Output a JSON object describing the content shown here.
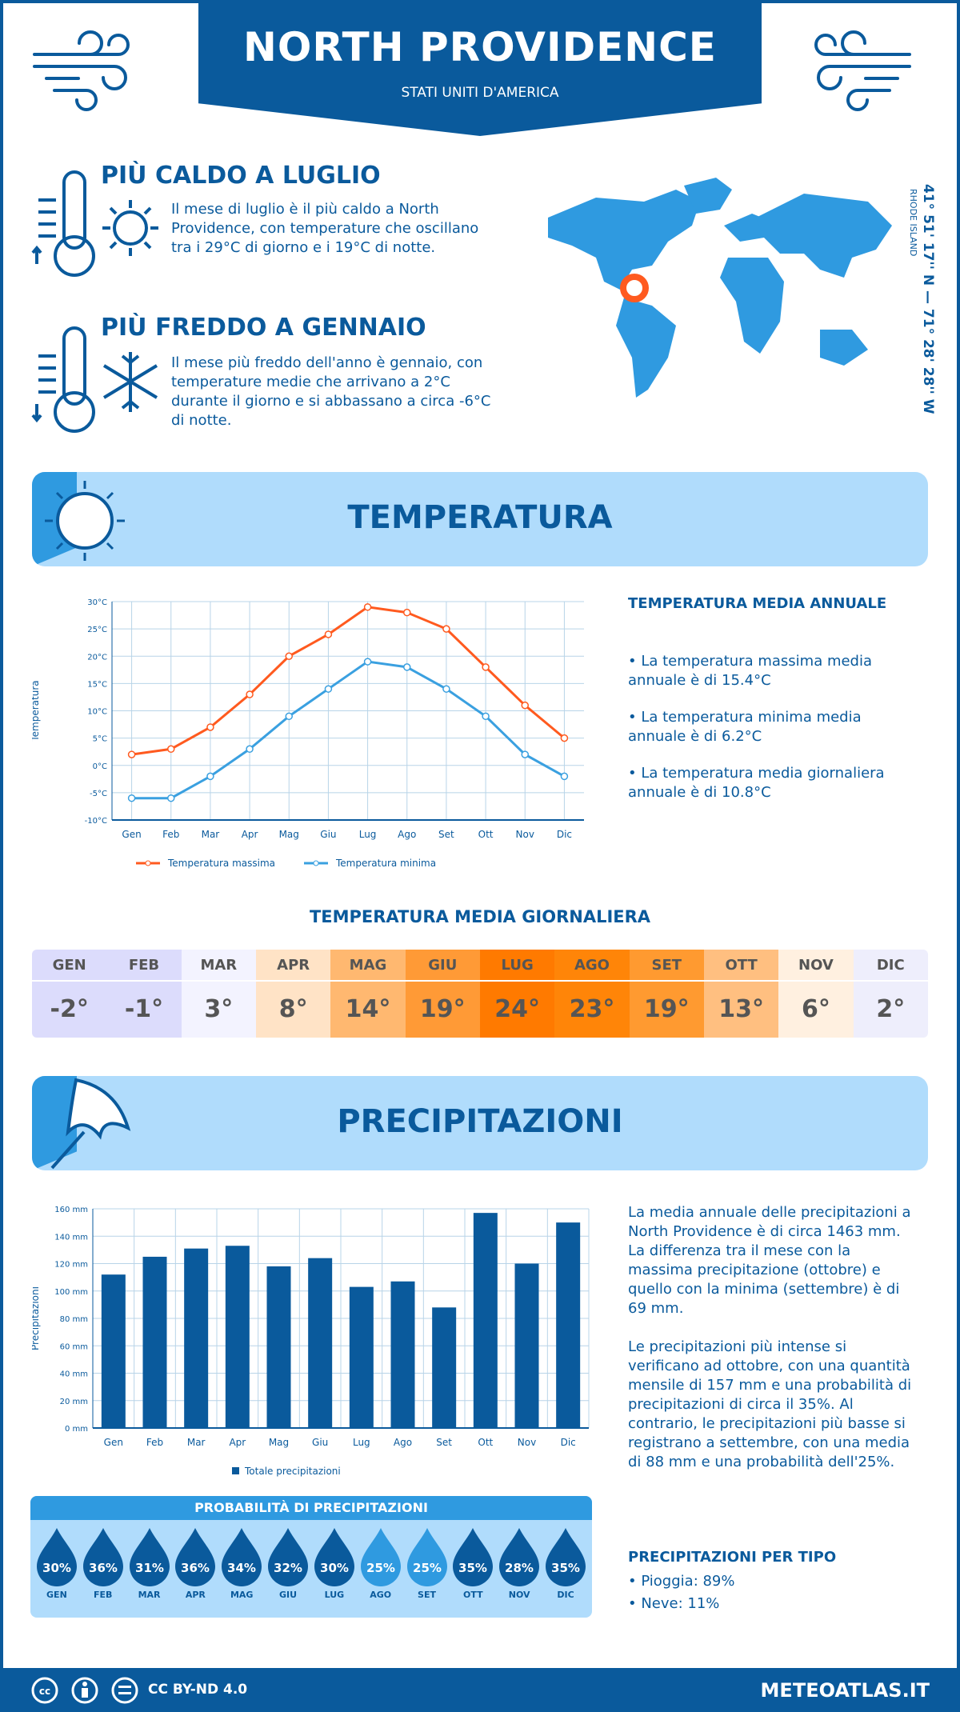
{
  "header": {
    "title": "NORTH PROVIDENCE",
    "subtitle": "STATI UNITI D'AMERICA"
  },
  "hot": {
    "title": "PIÙ CALDO A LUGLIO",
    "text": "Il mese di luglio è il più caldo a North Providence, con temperature che oscillano tra i 29°C di giorno e i 19°C di notte."
  },
  "cold": {
    "title": "PIÙ FREDDO A GENNAIO",
    "text": "Il mese più freddo dell'anno è gennaio, con temperature medie che arrivano a 2°C durante il giorno e si abbassano a circa -6°C di notte."
  },
  "location": {
    "coords": "41° 51' 17'' N — 71° 28' 28'' W",
    "region": "RHODE ISLAND"
  },
  "temp_section": {
    "title": "TEMPERATURA",
    "summary_title": "TEMPERATURA MEDIA ANNUALE",
    "bullets": [
      "• La temperatura massima media annuale è di 15.4°C",
      "• La temperatura minima media annuale è di 6.2°C",
      "• La temperatura media giornaliera annuale è di 10.8°C"
    ]
  },
  "daily": {
    "title": "TEMPERATURA MEDIA GIORNALIERA",
    "months": [
      "GEN",
      "FEB",
      "MAR",
      "APR",
      "MAG",
      "GIU",
      "LUG",
      "AGO",
      "SET",
      "OTT",
      "NOV",
      "DIC"
    ],
    "values": [
      "-2°",
      "-1°",
      "3°",
      "8°",
      "14°",
      "19°",
      "24°",
      "23°",
      "19°",
      "13°",
      "6°",
      "2°"
    ],
    "colors": [
      "#dcdcfc",
      "#dcdcfc",
      "#f3f3ff",
      "#ffe3c6",
      "#ffb870",
      "#ff9a36",
      "#ff7a00",
      "#ff8508",
      "#ff9a30",
      "#ffbf80",
      "#fff0e0",
      "#eeeefc"
    ]
  },
  "precip_section": {
    "title": "PRECIPITAZIONI",
    "para1": "La media annuale delle precipitazioni a North Providence è di circa 1463 mm. La differenza tra il mese con la massima precipitazione (ottobre) e quello con la minima (settembre) è di 69 mm.",
    "para2": "Le precipitazioni più intense si verificano ad ottobre, con una quantità mensile di 157 mm e una probabilità di precipitazioni di circa il 35%. Al contrario, le precipitazioni più basse si registrano a settembre, con una media di 88 mm e una probabilità dell'25%.",
    "prob_title": "PROBABILITÀ DI PRECIPITAZIONI",
    "prob": [
      "30%",
      "36%",
      "31%",
      "36%",
      "34%",
      "32%",
      "30%",
      "25%",
      "25%",
      "35%",
      "28%",
      "35%"
    ],
    "type_title": "PRECIPITAZIONI PER TIPO",
    "types": [
      "• Pioggia: 89%",
      "• Neve: 11%"
    ]
  },
  "footer": {
    "license": "CC BY-ND 4.0",
    "site": "METEOATLAS.IT"
  },
  "colors": {
    "primary": "#0a5a9c",
    "accent": "#2f9ae0",
    "max": "#ff5a1f",
    "min": "#3aa0e0"
  },
  "chart_data": [
    {
      "type": "line",
      "categories": [
        "Gen",
        "Feb",
        "Mar",
        "Apr",
        "Mag",
        "Giu",
        "Lug",
        "Ago",
        "Set",
        "Ott",
        "Nov",
        "Dic"
      ],
      "ylabel": "Temperatura",
      "ylim": [
        -10,
        30
      ],
      "yticks": [
        "-10°C",
        "-5°C",
        "0°C",
        "5°C",
        "10°C",
        "15°C",
        "20°C",
        "25°C",
        "30°C"
      ],
      "grid": true,
      "legend": "bottom",
      "series": [
        {
          "name": "Temperatura massima",
          "values": [
            2,
            3,
            7,
            13,
            20,
            24,
            29,
            28,
            25,
            18,
            11,
            5
          ],
          "color": "#ff5a1f"
        },
        {
          "name": "Temperatura minima",
          "values": [
            -6,
            -6,
            -2,
            3,
            9,
            14,
            19,
            18,
            14,
            9,
            2,
            -2
          ],
          "color": "#3aa0e0"
        }
      ]
    },
    {
      "type": "bar",
      "categories": [
        "Gen",
        "Feb",
        "Mar",
        "Apr",
        "Mag",
        "Giu",
        "Lug",
        "Ago",
        "Set",
        "Ott",
        "Nov",
        "Dic"
      ],
      "ylabel": "Precipitazioni",
      "ylim": [
        0,
        160
      ],
      "yticks": [
        "0 mm",
        "20 mm",
        "40 mm",
        "60 mm",
        "80 mm",
        "100 mm",
        "120 mm",
        "140 mm",
        "160 mm"
      ],
      "grid": true,
      "legend": "bottom",
      "series": [
        {
          "name": "Totale precipitazioni",
          "values": [
            112,
            125,
            131,
            133,
            118,
            124,
            103,
            107,
            88,
            157,
            120,
            150
          ],
          "color": "#0a5a9c"
        }
      ]
    }
  ]
}
